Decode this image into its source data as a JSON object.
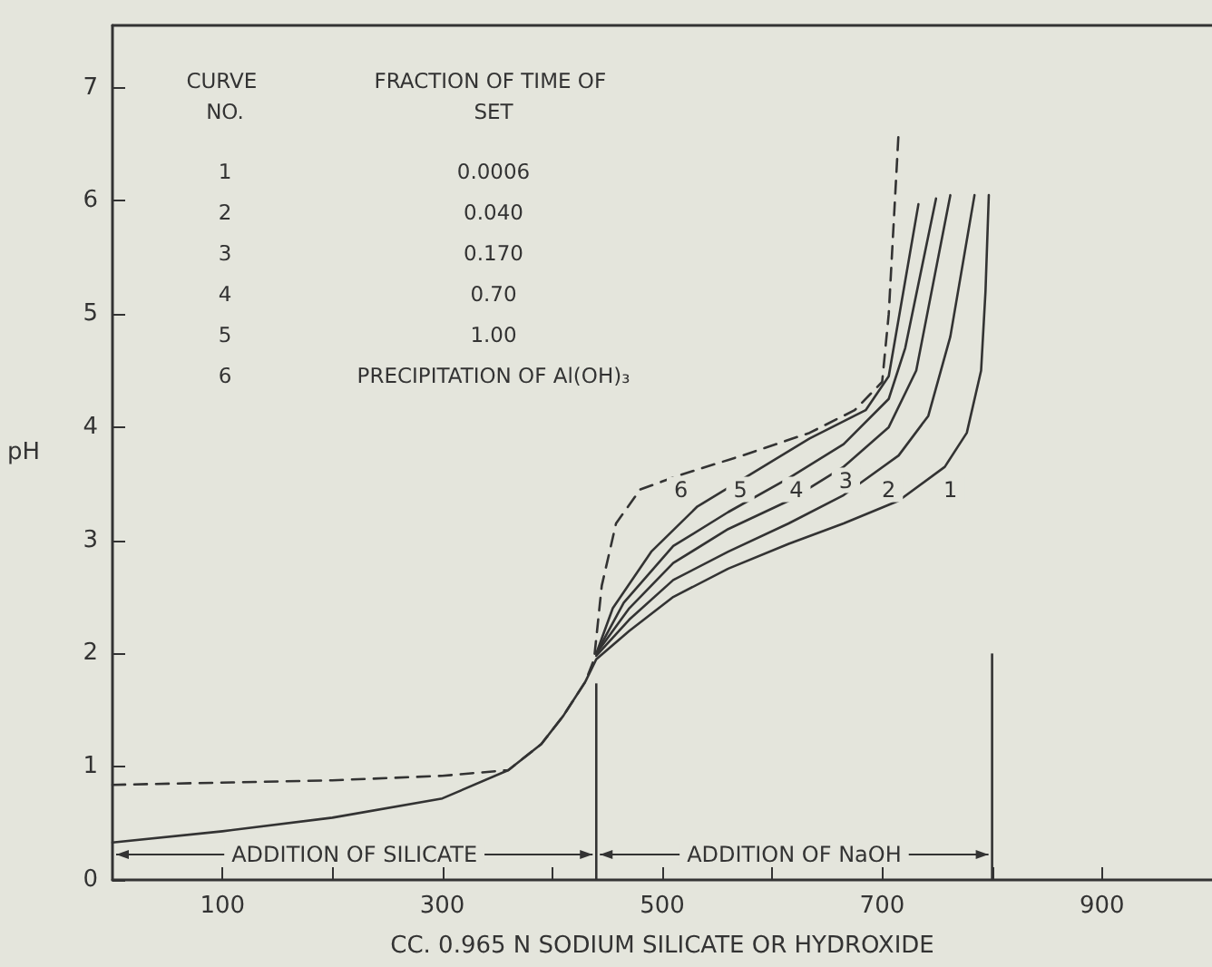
{
  "chart_data": {
    "type": "line",
    "xlabel": "CC. 0.965 N SODIUM SILICATE OR HYDROXIDE",
    "ylabel": "pH",
    "xlim": [
      0,
      1000
    ],
    "ylim": [
      0,
      7.55
    ],
    "xticks": [
      100,
      {
        "value": 200,
        "label": null
      },
      300,
      {
        "value": 400,
        "label": null
      },
      500,
      {
        "value": 600,
        "label": null
      },
      700,
      {
        "value": 800,
        "label": null
      },
      900
    ],
    "yticks": [
      0,
      1,
      2,
      3,
      4,
      5,
      6,
      7
    ],
    "grid": false,
    "marker": "none",
    "line_style": "solid",
    "series": [
      {
        "color": "#333333",
        "x": [
          0,
          100,
          200,
          300,
          360,
          390,
          410,
          430,
          440,
          470,
          510,
          560,
          615,
          665,
          715,
          757,
          777,
          790,
          794,
          797
        ],
        "values": [
          0.33,
          0.43,
          0.55,
          0.72,
          0.97,
          1.2,
          1.45,
          1.75,
          1.95,
          2.2,
          2.5,
          2.75,
          2.97,
          3.15,
          3.35,
          3.65,
          3.95,
          4.5,
          5.2,
          6.05
        ]
      },
      {
        "color": "#333333",
        "x": [
          440,
          470,
          510,
          560,
          615,
          665,
          715,
          742,
          762,
          784
        ],
        "values": [
          1.98,
          2.3,
          2.65,
          2.9,
          3.15,
          3.4,
          3.75,
          4.1,
          4.8,
          6.05
        ]
      },
      {
        "color": "#333333",
        "x": [
          440,
          470,
          510,
          560,
          615,
          665,
          706,
          731,
          762
        ],
        "values": [
          2.0,
          2.4,
          2.8,
          3.1,
          3.35,
          3.65,
          4.0,
          4.5,
          6.05
        ]
      },
      {
        "color": "#333333",
        "x": [
          440,
          465,
          510,
          560,
          615,
          665,
          706,
          721,
          749
        ],
        "values": [
          2.0,
          2.45,
          2.95,
          3.25,
          3.55,
          3.85,
          4.25,
          4.7,
          6.02
        ]
      },
      {
        "color": "#333333",
        "x": [
          440,
          455,
          490,
          532,
          583,
          634,
          685,
          706,
          733
        ],
        "values": [
          2.0,
          2.4,
          2.9,
          3.3,
          3.6,
          3.9,
          4.15,
          4.45,
          5.97
        ]
      },
      {
        "color": "#333333",
        "line_style": "dashed",
        "x": [
          0,
          200,
          300,
          360,
          390,
          410,
          430,
          438,
          445,
          458,
          480,
          517,
          573,
          634,
          675,
          700,
          706,
          715
        ],
        "values": [
          0.84,
          0.88,
          0.92,
          0.97,
          1.2,
          1.45,
          1.75,
          1.95,
          2.6,
          3.15,
          3.45,
          3.58,
          3.75,
          3.95,
          4.15,
          4.4,
          5.0,
          6.61
        ]
      }
    ],
    "ref_lines": [
      {
        "axis": "x",
        "value": 440
      },
      {
        "axis": "x",
        "value": 800
      }
    ],
    "annotations": [
      "CURVE NO.",
      "FRACTION OF TIME OF SET",
      "1",
      "0.0006",
      "2",
      "0.040",
      "3",
      "0.170",
      "4",
      "0.70",
      "5",
      "1.00",
      "6",
      "PRECIPITATION OF Al(OH)₃",
      {
        "text": "6",
        "x": 517,
        "y": 3.45
      },
      {
        "text": "5",
        "x": 571,
        "y": 3.45
      },
      {
        "text": "4",
        "x": 622,
        "y": 3.45
      },
      {
        "text": "3",
        "x": 667,
        "y": 3.53
      },
      {
        "text": "2",
        "x": 706,
        "y": 3.45
      },
      {
        "text": "1",
        "x": 762,
        "y": 3.45
      },
      "ADDITION OF SILICATE",
      "ADDITION OF NaOH"
    ]
  }
}
